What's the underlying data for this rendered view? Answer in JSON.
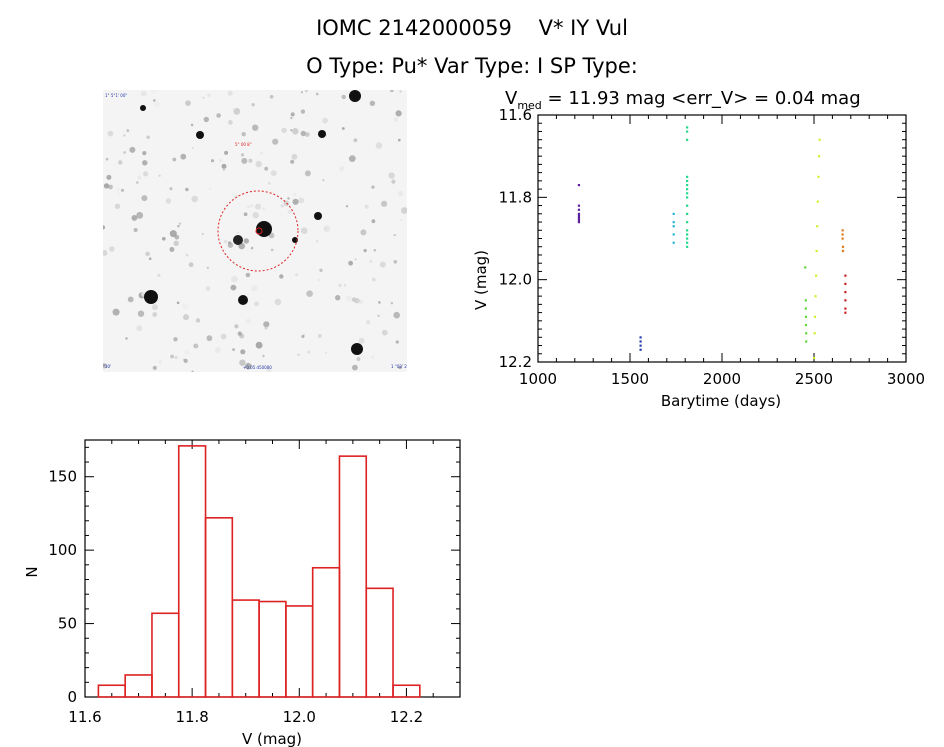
{
  "header": {
    "object_id": "IOMC 2142000059",
    "star_name": "V* IY Vul",
    "types": "O Type: Pu*  Var Type: I  SP Type:"
  },
  "sky_image": {
    "labels": [
      "1° 5°1' 00\"",
      "5° 00 8°",
      "+0.05 d50000",
      "°30'",
      "1 °03' 28°23'"
    ]
  },
  "chart_data": [
    {
      "type": "scatter",
      "title_symbol": "V",
      "title_subscript": "med",
      "title_rest": " = 11.93 mag <err_V> = 0.04 mag",
      "xlabel": "Barytime (days)",
      "ylabel": "V (mag)",
      "xlim": [
        1000,
        3000
      ],
      "ylim": [
        12.2,
        11.6
      ],
      "y_inverted": true,
      "xticks": [
        "1000",
        "1500",
        "2000",
        "2500",
        "3000"
      ],
      "yticks": [
        "11.6",
        "11.8",
        "12.0",
        "12.2"
      ],
      "series": [
        {
          "color": "#5b1e9e",
          "points": [
            [
              1222,
              11.77
            ],
            [
              1222,
              11.82
            ],
            [
              1222,
              11.83
            ],
            [
              1222,
              11.84
            ],
            [
              1222,
              11.845
            ],
            [
              1222,
              11.85
            ],
            [
              1222,
              11.855
            ],
            [
              1222,
              11.86
            ]
          ]
        },
        {
          "color": "#2a3fb0",
          "points": [
            [
              1557,
              12.14
            ],
            [
              1557,
              12.15
            ],
            [
              1557,
              12.16
            ],
            [
              1557,
              12.17
            ]
          ]
        },
        {
          "color": "#27b5d8",
          "points": [
            [
              1737,
              11.84
            ],
            [
              1737,
              11.86
            ],
            [
              1737,
              11.87
            ],
            [
              1737,
              11.89
            ],
            [
              1737,
              11.91
            ]
          ]
        },
        {
          "color": "#22d98c",
          "points": [
            [
              1810,
              11.63
            ],
            [
              1810,
              11.64
            ],
            [
              1810,
              11.66
            ],
            [
              1810,
              11.75
            ],
            [
              1810,
              11.76
            ],
            [
              1810,
              11.77
            ],
            [
              1810,
              11.78
            ],
            [
              1810,
              11.79
            ],
            [
              1810,
              11.8
            ],
            [
              1810,
              11.82
            ],
            [
              1810,
              11.84
            ],
            [
              1810,
              11.86
            ],
            [
              1810,
              11.88
            ],
            [
              1810,
              11.89
            ],
            [
              1810,
              11.9
            ],
            [
              1810,
              11.91
            ],
            [
              1810,
              11.92
            ]
          ]
        },
        {
          "color": "#5fd83a",
          "points": [
            [
              2452,
              11.97
            ],
            [
              2455,
              12.05
            ],
            [
              2455,
              12.07
            ],
            [
              2456,
              12.09
            ],
            [
              2456,
              12.11
            ],
            [
              2457,
              12.13
            ],
            [
              2457,
              12.15
            ]
          ]
        },
        {
          "color": "#d4f02c",
          "points": [
            [
              2500,
              12.19
            ],
            [
              2503,
              12.13
            ],
            [
              2505,
              12.09
            ],
            [
              2508,
              12.04
            ],
            [
              2511,
              11.99
            ],
            [
              2514,
              11.93
            ],
            [
              2517,
              11.87
            ],
            [
              2520,
              11.81
            ],
            [
              2524,
              11.75
            ],
            [
              2527,
              11.7
            ],
            [
              2530,
              11.66
            ]
          ]
        },
        {
          "color": "#e07a20",
          "points": [
            [
              2655,
              11.88
            ],
            [
              2655,
              11.89
            ],
            [
              2655,
              11.9
            ],
            [
              2657,
              11.92
            ],
            [
              2657,
              11.93
            ]
          ]
        },
        {
          "color": "#cc2222",
          "points": [
            [
              2670,
              11.99
            ],
            [
              2670,
              12.01
            ],
            [
              2670,
              12.03
            ],
            [
              2670,
              12.05
            ],
            [
              2670,
              12.07
            ],
            [
              2670,
              12.08
            ]
          ]
        }
      ]
    },
    {
      "type": "bar",
      "subtype": "histogram",
      "xlabel": "V (mag)",
      "ylabel": "N",
      "xlim": [
        11.6,
        12.3
      ],
      "ylim": [
        0,
        175
      ],
      "bar_color": "#dd2222",
      "xticks": [
        "11.6",
        "11.8",
        "12.0",
        "12.2"
      ],
      "yticks": [
        "0",
        "50",
        "100",
        "150"
      ],
      "bin_edges": [
        11.625,
        11.675,
        11.725,
        11.775,
        11.825,
        11.875,
        11.925,
        11.975,
        12.025,
        12.075,
        12.125,
        12.175,
        12.225
      ],
      "counts": [
        8,
        15,
        57,
        171,
        122,
        66,
        65,
        62,
        88,
        164,
        74,
        8
      ]
    }
  ]
}
